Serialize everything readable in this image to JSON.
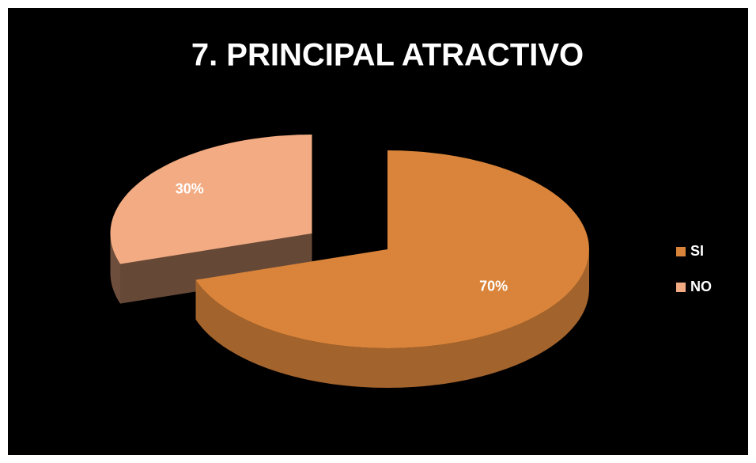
{
  "chart_data": {
    "type": "pie",
    "title": "7. PRINCIPAL ATRACTIVO",
    "categories": [
      "SI",
      "NO"
    ],
    "values": [
      70,
      30
    ],
    "value_labels": [
      "70%",
      "30%"
    ],
    "colors": [
      "#d9843a",
      "#f2ab82"
    ],
    "legend": "right",
    "exploded": "NO"
  }
}
